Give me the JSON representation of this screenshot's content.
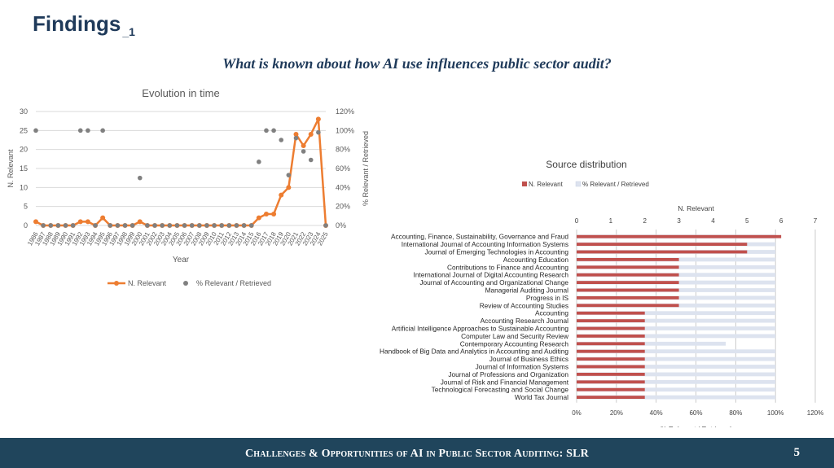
{
  "slide": {
    "title": "Findings",
    "title_sub": "_1",
    "question": "What is known about how AI use influences public sector audit?",
    "footer": "Challenges & Opportunities of AI in Public Sector Auditing: SLR",
    "page_number": "5"
  },
  "colors": {
    "title": "#1f3a5a",
    "footer_bg": "#20455c",
    "line": "#ed7d31",
    "dots": "#808080",
    "bar_relevant": "#c0504d",
    "bar_pct": "#dde3ef"
  },
  "chart_data": [
    {
      "type": "line",
      "title": "Evolution in time",
      "xlabel": "Year",
      "ylabel": "N. Relevant",
      "ylabel_right": "% Relevant / Retrieved",
      "legend_position": "bottom",
      "grid": true,
      "ylim": [
        0,
        30
      ],
      "y_ticks": [
        "0",
        "5",
        "10",
        "15",
        "20",
        "25",
        "30"
      ],
      "ylim_right": [
        0,
        120
      ],
      "y_ticks_right": [
        "0%",
        "20%",
        "40%",
        "60%",
        "80%",
        "100%",
        "120%"
      ],
      "x": [
        "1986",
        "1987",
        "1988",
        "1989",
        "1990",
        "1991",
        "1992",
        "1993",
        "1994",
        "1995",
        "1996",
        "1997",
        "1998",
        "1999",
        "2000",
        "2001",
        "2002",
        "2003",
        "2004",
        "2005",
        "2006",
        "2007",
        "2008",
        "2009",
        "2010",
        "2011",
        "2012",
        "2013",
        "2014",
        "2015",
        "2016",
        "2017",
        "2018",
        "2019",
        "2020",
        "2021",
        "2022",
        "2023",
        "2024",
        "2025"
      ],
      "series": [
        {
          "name": "N. Relevant",
          "axis": "left",
          "values": [
            1,
            0,
            0,
            0,
            0,
            0,
            1,
            1,
            0,
            2,
            0,
            0,
            0,
            0,
            1,
            0,
            0,
            0,
            0,
            0,
            0,
            0,
            0,
            0,
            0,
            0,
            0,
            0,
            0,
            0,
            2,
            3,
            3,
            8,
            10,
            24,
            21,
            24,
            28,
            0
          ]
        },
        {
          "name": "% Relevant / Retrieved",
          "axis": "right",
          "values": [
            100,
            0,
            0,
            0,
            0,
            0,
            100,
            100,
            0,
            100,
            0,
            0,
            0,
            0,
            50,
            0,
            0,
            0,
            0,
            0,
            0,
            0,
            0,
            0,
            0,
            0,
            0,
            0,
            0,
            0,
            67,
            100,
            100,
            90,
            53,
            92,
            78,
            69,
            98,
            0
          ]
        }
      ]
    },
    {
      "type": "bar",
      "orientation": "horizontal",
      "title": "Source distribution",
      "legend_position": "top",
      "xlabel_top": "N. Relevant",
      "xlabel_bottom": "% Relevant / Retrieved",
      "xlim_top": [
        0,
        7
      ],
      "x_ticks_top": [
        "0",
        "1",
        "2",
        "3",
        "4",
        "5",
        "6",
        "7"
      ],
      "xlim_bottom": [
        0,
        120
      ],
      "x_ticks_bottom": [
        "0%",
        "20%",
        "40%",
        "60%",
        "80%",
        "100%",
        "120%"
      ],
      "grid": true,
      "categories": [
        "Accounting, Finance, Sustainability, Governance and Fraud",
        "International Journal of Accounting Information Systems",
        "Journal of Emerging Technologies in Accounting",
        "Accounting Education",
        "Contributions to Finance and Accounting",
        "International Journal of Digital Accounting Research",
        "Journal of Accounting and Organizational Change",
        "Managerial Auditing Journal",
        "Progress in IS",
        "Review of Accounting Studies",
        "Accounting",
        "Accounting Research Journal",
        "Artificial Intelligence Approaches to Sustainable Accounting",
        "Computer Law and Security Review",
        "Contemporary Accounting Research",
        "Handbook of Big Data and Analytics in Accounting and Auditing",
        "Journal of Business Ethics",
        "Journal of Information Systems",
        "Journal of Professions and Organization",
        "Journal of Risk and Financial Management",
        "Technological Forecasting and Social Change",
        "World Tax Journal"
      ],
      "series": [
        {
          "name": "N. Relevant",
          "values": [
            6,
            5,
            5,
            3,
            3,
            3,
            3,
            3,
            3,
            3,
            2,
            2,
            2,
            2,
            2,
            2,
            2,
            2,
            2,
            2,
            2,
            2
          ]
        },
        {
          "name": "% Relevant / Retrieved",
          "values": [
            100,
            100,
            100,
            100,
            100,
            100,
            100,
            100,
            100,
            100,
            100,
            100,
            100,
            100,
            75,
            100,
            100,
            100,
            100,
            100,
            100,
            100
          ]
        }
      ]
    }
  ]
}
